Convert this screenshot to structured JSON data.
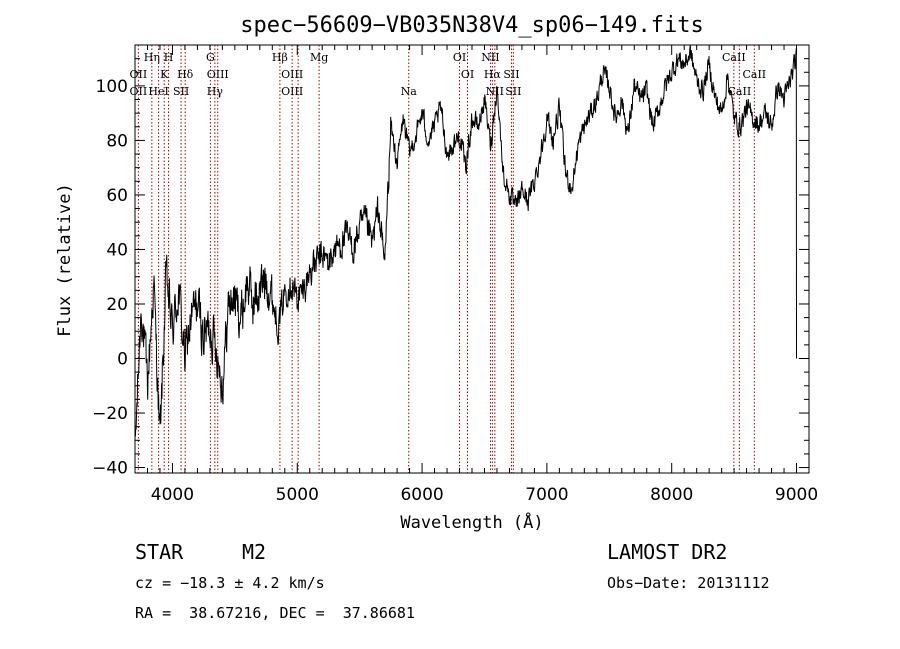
{
  "chart_data": {
    "type": "line",
    "title": "spec−56609−VB035N38V4_sp06−149.fits",
    "xlabel": "Wavelength (Å)",
    "ylabel": "Flux (relative)",
    "xlim": [
      3700,
      9100
    ],
    "ylim": [
      -42,
      115
    ],
    "x_ticks": [
      4000,
      5000,
      6000,
      7000,
      8000,
      9000
    ],
    "y_ticks": [
      -40,
      -20,
      0,
      20,
      40,
      60,
      80,
      100
    ],
    "y_tick_labels": [
      "−40",
      "−20",
      "0",
      "20",
      "40",
      "60",
      "80",
      "100"
    ],
    "grid": false,
    "series": [
      {
        "name": "spectrum",
        "x": [
          3700,
          3750,
          3800,
          3850,
          3900,
          3950,
          4000,
          4050,
          4100,
          4150,
          4200,
          4250,
          4300,
          4350,
          4400,
          4450,
          4500,
          4550,
          4600,
          4650,
          4700,
          4750,
          4800,
          4850,
          4900,
          4950,
          5000,
          5050,
          5100,
          5150,
          5200,
          5250,
          5300,
          5350,
          5400,
          5450,
          5500,
          5550,
          5600,
          5650,
          5700,
          5750,
          5800,
          5850,
          5900,
          5950,
          6000,
          6050,
          6100,
          6150,
          6200,
          6250,
          6300,
          6350,
          6400,
          6450,
          6500,
          6550,
          6600,
          6650,
          6700,
          6750,
          6800,
          6850,
          6900,
          6950,
          7000,
          7050,
          7100,
          7150,
          7200,
          7250,
          7300,
          7350,
          7400,
          7450,
          7500,
          7550,
          7600,
          7650,
          7700,
          7750,
          7800,
          7850,
          7900,
          7950,
          8000,
          8050,
          8100,
          8150,
          8200,
          8250,
          8300,
          8350,
          8400,
          8450,
          8500,
          8550,
          8600,
          8650,
          8700,
          8750,
          8800,
          8850,
          8900,
          8950,
          9000
        ],
        "y": [
          -35,
          20,
          -10,
          28,
          -30,
          30,
          10,
          25,
          0,
          15,
          20,
          8,
          12,
          5,
          -10,
          20,
          22,
          15,
          28,
          20,
          25,
          30,
          22,
          12,
          25,
          28,
          22,
          25,
          32,
          35,
          38,
          35,
          40,
          42,
          45,
          40,
          48,
          50,
          42,
          55,
          35,
          85,
          72,
          88,
          75,
          82,
          90,
          80,
          85,
          92,
          75,
          78,
          82,
          70,
          88,
          85,
          95,
          78,
          100,
          68,
          60,
          55,
          62,
          58,
          65,
          75,
          88,
          80,
          92,
          68,
          62,
          78,
          85,
          90,
          95,
          105,
          100,
          88,
          95,
          82,
          100,
          95,
          98,
          85,
          92,
          100,
          105,
          110,
          108,
          112,
          102,
          98,
          108,
          95,
          90,
          104,
          88,
          85,
          92,
          88,
          86,
          90,
          85,
          100,
          95,
          102,
          110
        ]
      }
    ],
    "lines_top": [
      {
        "label": "Hη",
        "x": 3835,
        "row": 1
      },
      {
        "label": "H",
        "x": 3969,
        "row": 1
      },
      {
        "label": "G",
        "x": 4304,
        "row": 1
      },
      {
        "label": "Hβ",
        "x": 4861,
        "row": 1
      },
      {
        "label": "Mg",
        "x": 5175,
        "row": 1
      },
      {
        "label": "OI",
        "x": 6300,
        "row": 1
      },
      {
        "label": "NII",
        "x": 6548,
        "row": 1
      },
      {
        "label": "CaII",
        "x": 8498,
        "row": 1
      },
      {
        "label": "OII",
        "x": 3727,
        "row": 2
      },
      {
        "label": "K",
        "x": 3934,
        "row": 2
      },
      {
        "label": "Hδ",
        "x": 4102,
        "row": 2
      },
      {
        "label": "OIII",
        "x": 4363,
        "row": 2
      },
      {
        "label": "OIII",
        "x": 4959,
        "row": 2
      },
      {
        "label": "OI",
        "x": 6364,
        "row": 2
      },
      {
        "label": "Hα",
        "x": 6563,
        "row": 2
      },
      {
        "label": "SII",
        "x": 6716,
        "row": 2
      },
      {
        "label": "CaII",
        "x": 8662,
        "row": 2
      },
      {
        "label": "OII",
        "x": 3727,
        "row": 3
      },
      {
        "label": "HeI",
        "x": 3889,
        "row": 3
      },
      {
        "label": "SII",
        "x": 4069,
        "row": 3
      },
      {
        "label": "Hγ",
        "x": 4340,
        "row": 3
      },
      {
        "label": "OIII",
        "x": 4959,
        "row": 3
      },
      {
        "label": "Na",
        "x": 5893,
        "row": 3
      },
      {
        "label": "NII",
        "x": 6583,
        "row": 3
      },
      {
        "label": "SII",
        "x": 6731,
        "row": 3
      },
      {
        "label": "CaII",
        "x": 8542,
        "row": 3
      }
    ],
    "line_positions": [
      3727,
      3835,
      3889,
      3934,
      3969,
      4069,
      4102,
      4304,
      4340,
      4363,
      4861,
      4959,
      5007,
      5175,
      5893,
      6300,
      6364,
      6548,
      6563,
      6583,
      6716,
      6731,
      8498,
      8542,
      8662
    ],
    "line_color": "#a80000"
  },
  "info": {
    "object_class": "STAR",
    "subclass": "M2",
    "survey": "LAMOST DR2",
    "cz": "cz = −18.3 ± 4.2 km/s",
    "obs_date": "Obs−Date: 20131112",
    "coords": "RA =  38.67216, DEC =  37.86681"
  }
}
